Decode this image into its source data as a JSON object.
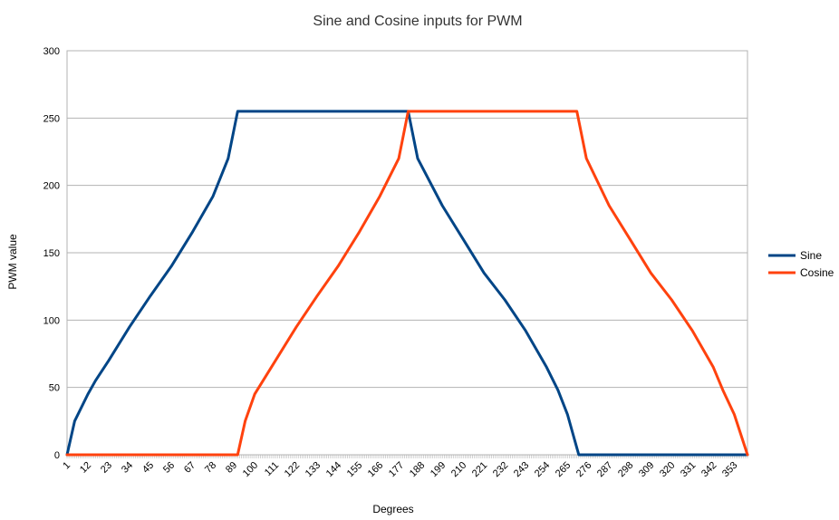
{
  "chart_data": {
    "type": "line",
    "title": "Sine and Cosine inputs for PWM",
    "xlabel": "Degrees",
    "ylabel": "PWM value",
    "ylim": [
      0,
      300
    ],
    "yticks": [
      0,
      50,
      100,
      150,
      200,
      250,
      300
    ],
    "xlim": [
      1,
      360
    ],
    "xticks": [
      1,
      12,
      23,
      34,
      45,
      56,
      67,
      78,
      89,
      100,
      111,
      122,
      133,
      144,
      155,
      166,
      177,
      188,
      199,
      210,
      221,
      232,
      243,
      254,
      265,
      276,
      287,
      298,
      309,
      320,
      331,
      342,
      353
    ],
    "grid": "horizontal",
    "legend_position": "right",
    "series": [
      {
        "name": "Sine",
        "color": "#004586",
        "points": [
          [
            1,
            0
          ],
          [
            5,
            25
          ],
          [
            12,
            45
          ],
          [
            16,
            55
          ],
          [
            23,
            70
          ],
          [
            34,
            95
          ],
          [
            45,
            118
          ],
          [
            56,
            140
          ],
          [
            67,
            165
          ],
          [
            78,
            192
          ],
          [
            86,
            220
          ],
          [
            91,
            255
          ],
          [
            181,
            255
          ],
          [
            186,
            220
          ],
          [
            199,
            185
          ],
          [
            210,
            160
          ],
          [
            221,
            135
          ],
          [
            232,
            115
          ],
          [
            243,
            92
          ],
          [
            254,
            65
          ],
          [
            260,
            48
          ],
          [
            265,
            30
          ],
          [
            271,
            0
          ],
          [
            360,
            0
          ]
        ]
      },
      {
        "name": "Cosine",
        "color": "#ff420e",
        "points": [
          [
            1,
            0
          ],
          [
            91,
            0
          ],
          [
            95,
            25
          ],
          [
            100,
            45
          ],
          [
            111,
            70
          ],
          [
            122,
            95
          ],
          [
            133,
            118
          ],
          [
            144,
            140
          ],
          [
            155,
            165
          ],
          [
            166,
            192
          ],
          [
            176,
            220
          ],
          [
            181,
            255
          ],
          [
            270,
            255
          ],
          [
            275,
            220
          ],
          [
            287,
            185
          ],
          [
            298,
            160
          ],
          [
            309,
            135
          ],
          [
            320,
            115
          ],
          [
            331,
            92
          ],
          [
            342,
            65
          ],
          [
            347,
            48
          ],
          [
            353,
            30
          ],
          [
            360,
            0
          ]
        ]
      }
    ]
  }
}
